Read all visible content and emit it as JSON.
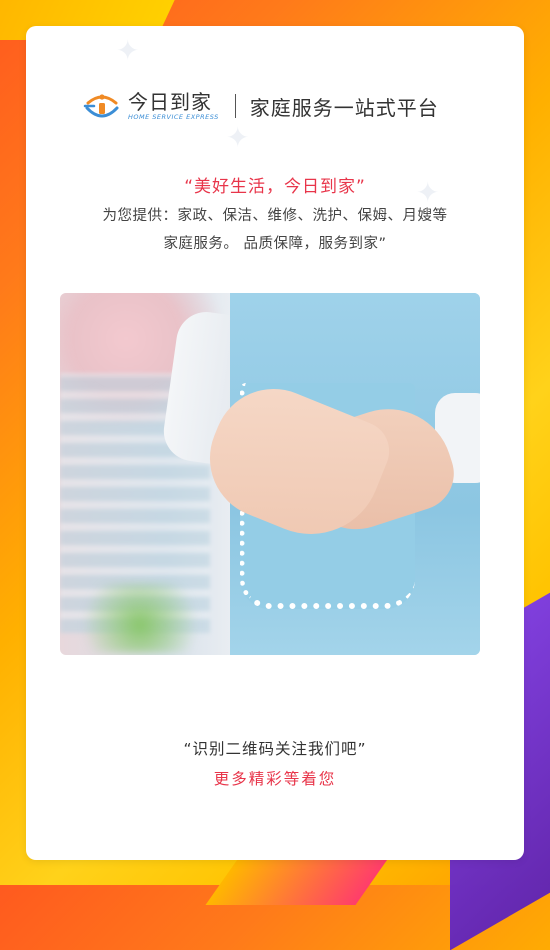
{
  "brand": {
    "name_cn": "今日到家",
    "name_en": "HOME SERVICE EXPRESS",
    "slogan": "家庭服务一站式平台",
    "logo_icon": "home-service-logo-icon"
  },
  "intro": {
    "quote": "“美好生活，今日到家”",
    "line1": "为您提供：家政、保洁、维修、洗护、保姆、月嫂等",
    "line2": "家庭服务。 品质保障，服务到家”"
  },
  "qr_prompt": {
    "line1": "“识别二维码关注我们吧”",
    "line2": "更多精彩等着您"
  },
  "colors": {
    "accent_red": "#e8354a",
    "brand_blue": "#3b8ed6",
    "brand_orange": "#f08a24",
    "bg_orange": "#ff7a1a",
    "bg_yellow": "#ffd21a",
    "bg_purple": "#6d28d9"
  }
}
